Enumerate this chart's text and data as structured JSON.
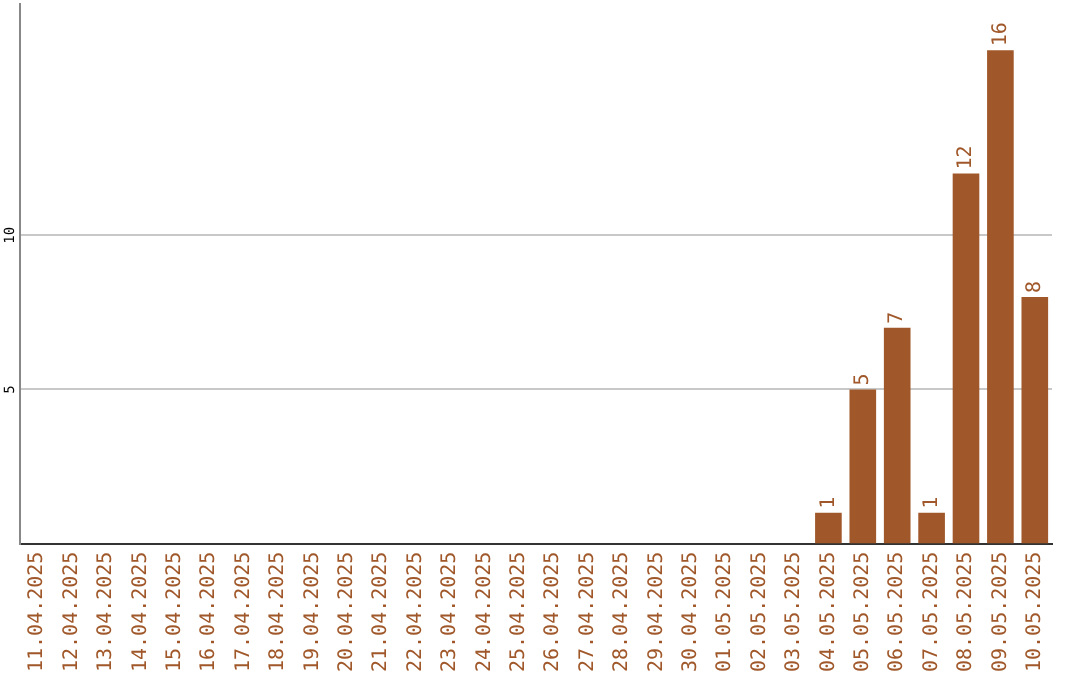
{
  "chart_data": {
    "type": "bar",
    "categories": [
      "11.04.2025",
      "12.04.2025",
      "13.04.2025",
      "14.04.2025",
      "15.04.2025",
      "16.04.2025",
      "17.04.2025",
      "18.04.2025",
      "19.04.2025",
      "20.04.2025",
      "21.04.2025",
      "22.04.2025",
      "23.04.2025",
      "24.04.2025",
      "25.04.2025",
      "26.04.2025",
      "27.04.2025",
      "28.04.2025",
      "29.04.2025",
      "30.04.2025",
      "01.05.2025",
      "02.05.2025",
      "03.05.2025",
      "04.05.2025",
      "05.05.2025",
      "06.05.2025",
      "07.05.2025",
      "08.05.2025",
      "09.05.2025",
      "10.05.2025"
    ],
    "values": [
      0,
      0,
      0,
      0,
      0,
      0,
      0,
      0,
      0,
      0,
      0,
      0,
      0,
      0,
      0,
      0,
      0,
      0,
      0,
      0,
      0,
      0,
      0,
      1,
      5,
      7,
      1,
      12,
      16,
      8
    ],
    "value_labels": [
      null,
      null,
      null,
      null,
      null,
      null,
      null,
      null,
      null,
      null,
      null,
      null,
      null,
      null,
      null,
      null,
      null,
      null,
      null,
      null,
      null,
      null,
      null,
      "1",
      "5",
      "7",
      "1",
      "12",
      "16",
      "8"
    ],
    "color": "#a0582a",
    "ylim": [
      0,
      17.5
    ],
    "yticks": [
      5,
      10
    ],
    "grid": "y",
    "legend": false
  }
}
